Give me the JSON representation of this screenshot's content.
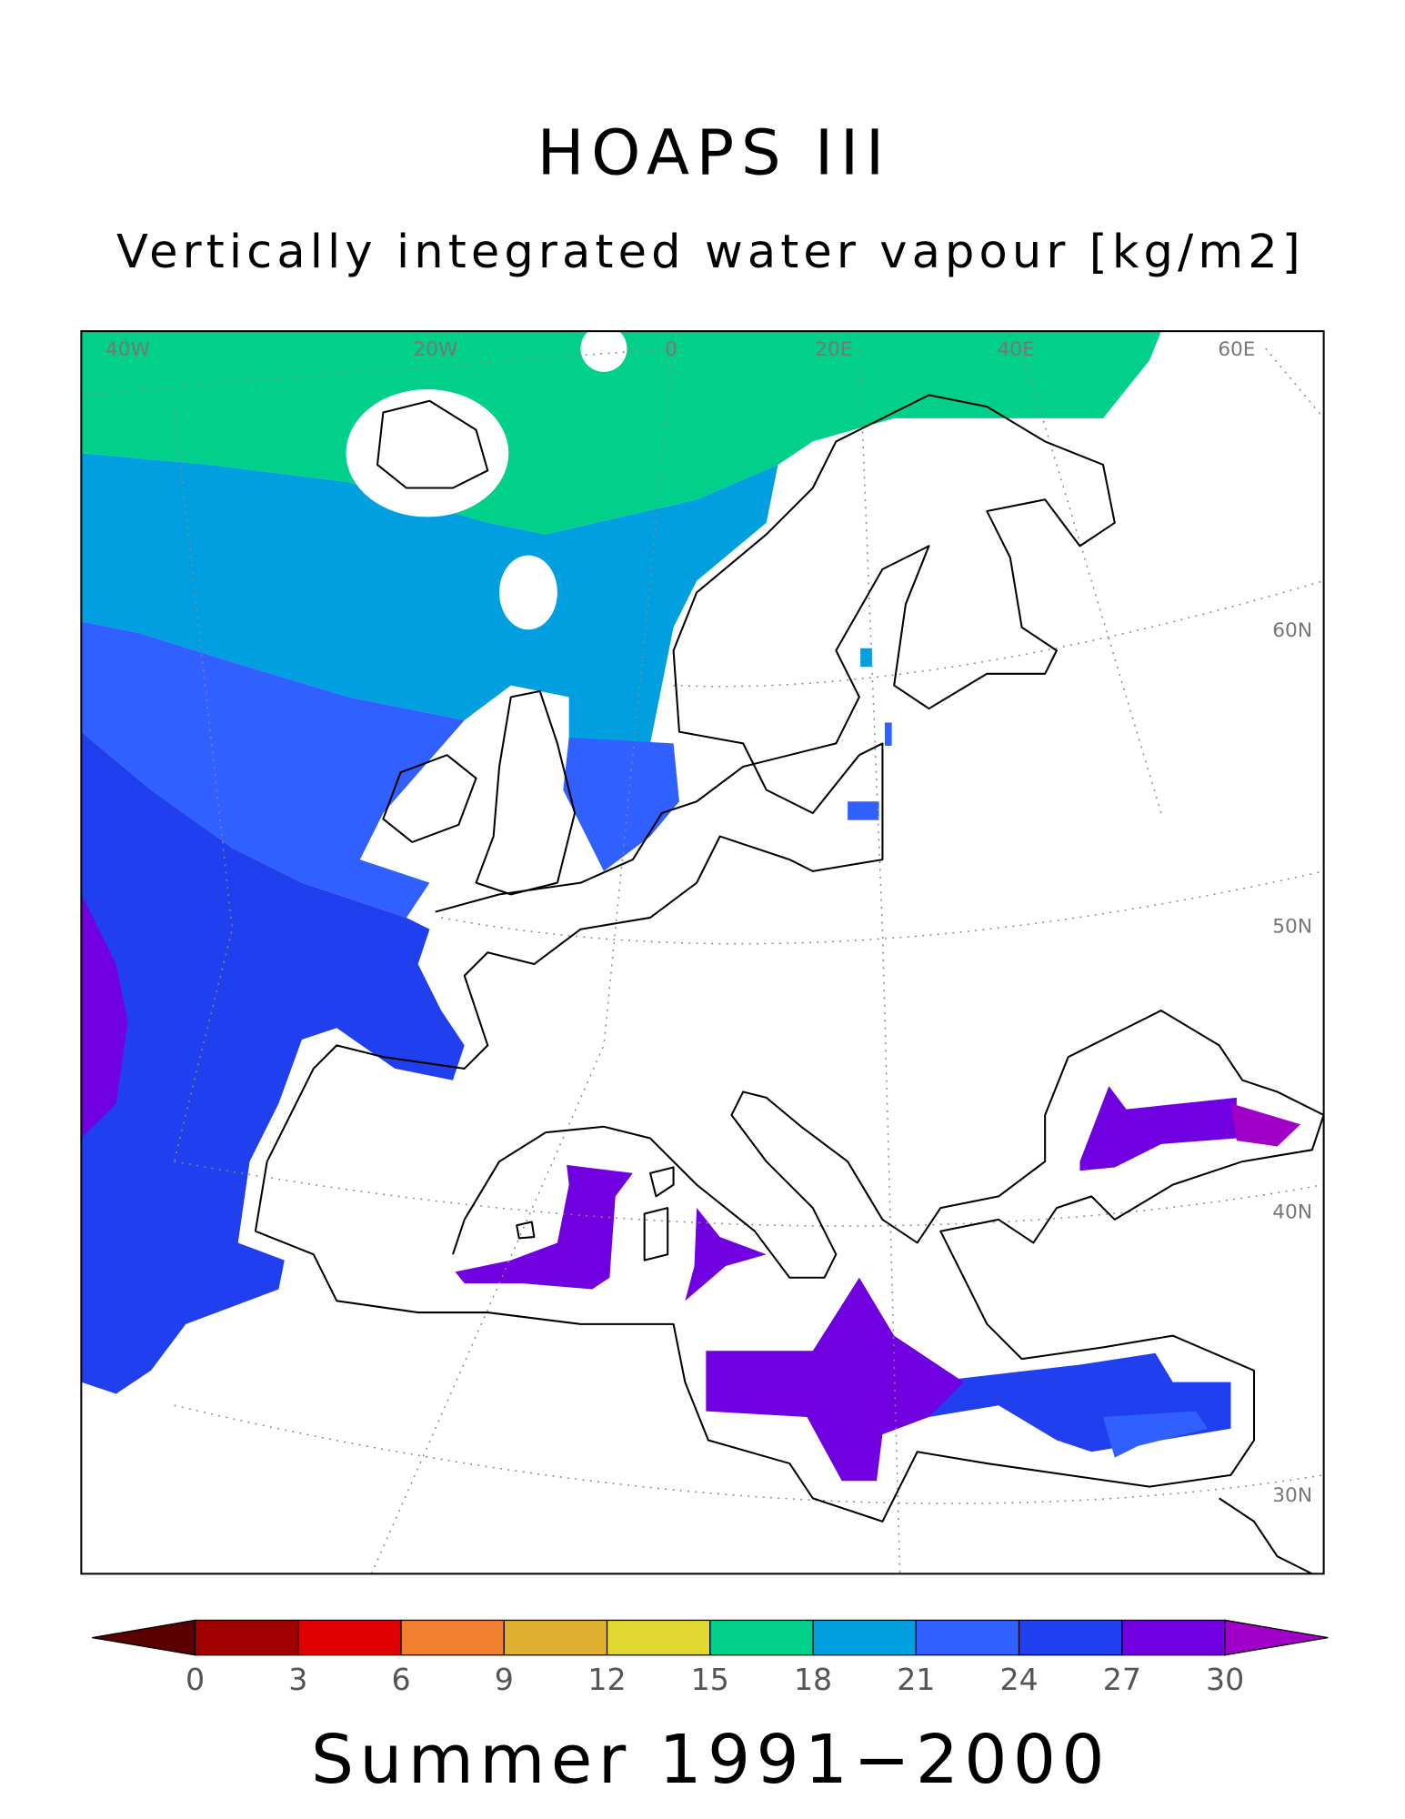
{
  "title": "HOAPS III",
  "subtitle": "Vertically integrated water vapour [kg/m2]",
  "footer": "Summer 1991−2000",
  "map": {
    "lon_labels": [
      "40W",
      "20W",
      "0",
      "20E",
      "40E",
      "60E"
    ],
    "lat_labels": [
      "60N",
      "50N",
      "40N",
      "30N"
    ]
  },
  "colorbar": {
    "ticks": [
      0,
      3,
      6,
      9,
      12,
      15,
      18,
      21,
      24,
      27,
      30
    ],
    "colors": [
      "#5a0000",
      "#a00000",
      "#e00000",
      "#f08030",
      "#e0b030",
      "#e0d830",
      "#00d08a",
      "#00a0e0",
      "#3060ff",
      "#2040f0",
      "#7000e0",
      "#a000c8"
    ]
  }
}
